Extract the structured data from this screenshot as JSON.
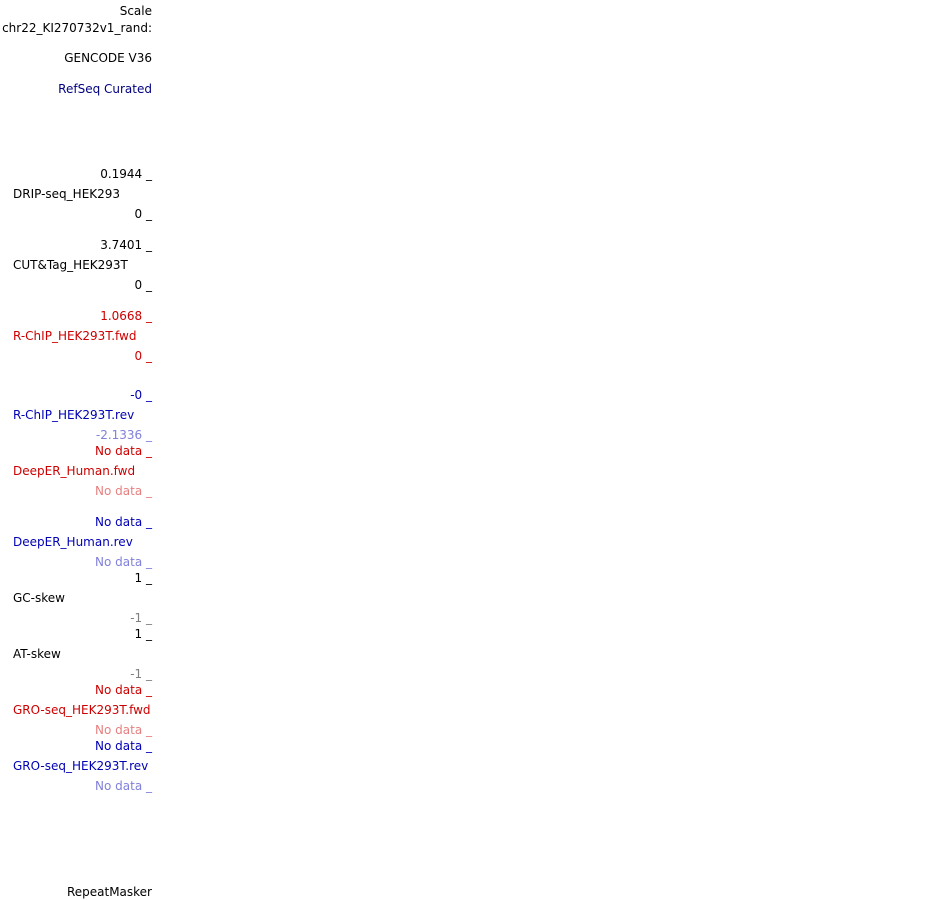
{
  "header": {
    "scale": "Scale",
    "chrom": "chr22_KI270732v1_rand:"
  },
  "tracks": {
    "gencode": "GENCODE V36",
    "refseq": "RefSeq Curated",
    "drip": {
      "max": "0.1944 _",
      "name": "DRIP-seq_HEK293",
      "min": "0 _"
    },
    "cuttag": {
      "max": "3.7401 _",
      "name": "CUT&Tag_HEK293T",
      "min": "0 _"
    },
    "rchip_fwd": {
      "max": "1.0668 _",
      "name": "R-ChIP_HEK293T.fwd",
      "min": "0 _"
    },
    "rchip_rev": {
      "max": "-0 _",
      "name": "R-ChIP_HEK293T.rev",
      "min": "-2.1336 _"
    },
    "deeper_fwd": {
      "max": "No data _",
      "name": "DeepER_Human.fwd",
      "min": "No data _"
    },
    "deeper_rev": {
      "max": "No data _",
      "name": "DeepER_Human.rev",
      "min": "No data _"
    },
    "gcskew": {
      "max": "1 _",
      "name": "GC-skew",
      "min": "-1 _"
    },
    "atskew": {
      "max": "1 _",
      "name": "AT-skew",
      "min": "-1 _"
    },
    "gro_fwd": {
      "max": "No data _",
      "name": "GRO-seq_HEK293T.fwd",
      "min": "No data _"
    },
    "gro_rev": {
      "max": "No data _",
      "name": "GRO-seq_HEK293T.rev",
      "min": "No data _"
    },
    "repeatmasker": "RepeatMasker"
  },
  "colors": {
    "black": "#000000",
    "navy": "#000080",
    "red": "#cc0000",
    "pink": "#e68080",
    "blue": "#0000b4",
    "light_blue": "#8080d9",
    "grey": "#7f7f7f"
  }
}
